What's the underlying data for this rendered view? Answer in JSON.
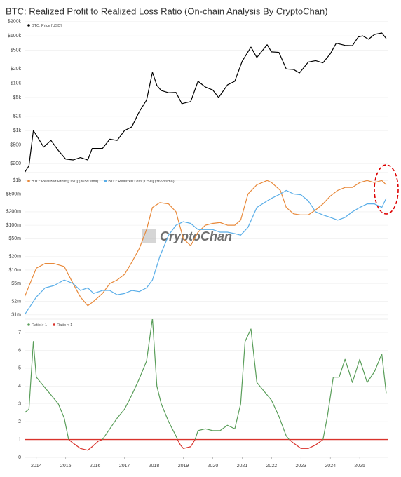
{
  "chart_data": [
    {
      "type": "line",
      "title": "BTC: Realized Profit to Realized Loss Ratio (On-chain Analysis By CryptoChan)",
      "log_y": true,
      "grid": true,
      "legend": "top-left",
      "xlim": [
        2013.6,
        2025.95
      ],
      "ylim": [
        130,
        220000
      ],
      "yticks": [
        {
          "value": 200000,
          "label": "$200k"
        },
        {
          "value": 100000,
          "label": "$100k"
        },
        {
          "value": 50000,
          "label": "$50k"
        },
        {
          "value": 20000,
          "label": "$20k"
        },
        {
          "value": 10000,
          "label": "$10k"
        },
        {
          "value": 5000,
          "label": "$5k"
        },
        {
          "value": 2000,
          "label": "$2k"
        },
        {
          "value": 1000,
          "label": "$1k"
        },
        {
          "value": 500,
          "label": "$500"
        },
        {
          "value": 200,
          "label": "$200"
        }
      ],
      "x": [
        2013.6,
        2013.75,
        2013.9,
        2014.0,
        2014.25,
        2014.5,
        2014.75,
        2015.0,
        2015.25,
        2015.5,
        2015.75,
        2015.9,
        2016.25,
        2016.5,
        2016.75,
        2017.0,
        2017.25,
        2017.5,
        2017.75,
        2017.95,
        2018.1,
        2018.25,
        2018.5,
        2018.75,
        2018.95,
        2019.25,
        2019.5,
        2019.75,
        2020.0,
        2020.2,
        2020.5,
        2020.75,
        2021.0,
        2021.3,
        2021.5,
        2021.85,
        2022.0,
        2022.25,
        2022.5,
        2022.75,
        2022.95,
        2023.25,
        2023.5,
        2023.75,
        2024.0,
        2024.2,
        2024.5,
        2024.75,
        2024.95,
        2025.1,
        2025.3,
        2025.5,
        2025.75,
        2025.9
      ],
      "series": [
        {
          "name": "BTC: Price [USD]",
          "color": "#000000",
          "values": [
            130,
            180,
            1000,
            800,
            450,
            620,
            380,
            250,
            240,
            270,
            240,
            420,
            420,
            660,
            620,
            1000,
            1200,
            2500,
            4400,
            17000,
            9000,
            7000,
            6300,
            6400,
            3700,
            4100,
            11000,
            8300,
            7200,
            5000,
            9200,
            11000,
            29000,
            58000,
            35000,
            65000,
            46000,
            45000,
            20000,
            19500,
            16500,
            28000,
            30000,
            27000,
            42000,
            70000,
            63000,
            62000,
            95000,
            100000,
            85000,
            107000,
            115000,
            88000
          ]
        }
      ]
    },
    {
      "type": "line",
      "log_y": true,
      "grid": true,
      "legend": "top-left",
      "watermark": "CryptoChan",
      "xlim": [
        2013.6,
        2025.95
      ],
      "ylim": [
        800000,
        1300000000
      ],
      "yticks": [
        {
          "value": 1000000000,
          "label": "$1b"
        },
        {
          "value": 500000000,
          "label": "$500m"
        },
        {
          "value": 200000000,
          "label": "$200m"
        },
        {
          "value": 100000000,
          "label": "$100m"
        },
        {
          "value": 50000000,
          "label": "$50m"
        },
        {
          "value": 20000000,
          "label": "$20m"
        },
        {
          "value": 10000000,
          "label": "$10m"
        },
        {
          "value": 5000000,
          "label": "$5m"
        },
        {
          "value": 2000000,
          "label": "$2m"
        },
        {
          "value": 1000000,
          "label": "$1m"
        }
      ],
      "x": [
        2013.6,
        2014.0,
        2014.3,
        2014.6,
        2014.95,
        2015.25,
        2015.5,
        2015.75,
        2015.95,
        2016.25,
        2016.5,
        2016.75,
        2017.0,
        2017.25,
        2017.5,
        2017.75,
        2017.95,
        2018.2,
        2018.5,
        2018.75,
        2019.0,
        2019.25,
        2019.5,
        2019.75,
        2020.0,
        2020.25,
        2020.5,
        2020.75,
        2020.95,
        2021.2,
        2021.5,
        2021.85,
        2022.0,
        2022.3,
        2022.5,
        2022.75,
        2023.0,
        2023.25,
        2023.5,
        2023.75,
        2024.0,
        2024.25,
        2024.5,
        2024.75,
        2025.0,
        2025.25,
        2025.5,
        2025.75,
        2025.9
      ],
      "series": [
        {
          "name": "BTC: Realized Profit [USD] (365d sma)",
          "color": "#e8893a",
          "values": [
            2500000,
            11000000,
            14000000,
            14000000,
            12000000,
            5000000,
            2500000,
            1600000,
            2000000,
            3000000,
            5000000,
            6000000,
            8000000,
            15000000,
            30000000,
            80000000,
            250000000,
            320000000,
            300000000,
            200000000,
            50000000,
            35000000,
            70000000,
            100000000,
            110000000,
            115000000,
            100000000,
            100000000,
            130000000,
            500000000,
            800000000,
            1000000000,
            900000000,
            600000000,
            250000000,
            180000000,
            170000000,
            170000000,
            220000000,
            300000000,
            450000000,
            600000000,
            700000000,
            700000000,
            900000000,
            1000000000,
            900000000,
            1000000000,
            800000000
          ]
        },
        {
          "name": "BTC: Realized Loss [USD] (365d sma)",
          "color": "#5aaee8",
          "values": [
            1000000,
            2500000,
            4000000,
            4500000,
            6000000,
            5000000,
            3500000,
            4000000,
            3000000,
            3500000,
            3500000,
            2800000,
            3000000,
            3500000,
            3300000,
            4000000,
            6000000,
            20000000,
            60000000,
            100000000,
            120000000,
            110000000,
            80000000,
            80000000,
            80000000,
            70000000,
            70000000,
            65000000,
            60000000,
            90000000,
            250000000,
            350000000,
            400000000,
            500000000,
            600000000,
            500000000,
            480000000,
            350000000,
            200000000,
            170000000,
            150000000,
            130000000,
            150000000,
            200000000,
            250000000,
            300000000,
            300000000,
            250000000,
            400000000
          ]
        }
      ]
    },
    {
      "type": "line",
      "log_y": false,
      "grid": true,
      "legend": "top-left",
      "xlim": [
        2013.6,
        2025.95
      ],
      "ylim": [
        0,
        7.75
      ],
      "yticks": [
        0,
        1,
        2,
        3,
        4,
        5,
        6,
        7
      ],
      "xticks": [
        2014,
        2015,
        2016,
        2017,
        2018,
        2019,
        2020,
        2021,
        2022,
        2023,
        2024,
        2025
      ],
      "hline": {
        "value": 1,
        "color": "#d9322b"
      },
      "x": [
        2013.6,
        2013.75,
        2013.9,
        2014.0,
        2014.25,
        2014.5,
        2014.75,
        2014.95,
        2015.1,
        2015.25,
        2015.5,
        2015.75,
        2015.9,
        2016.1,
        2016.25,
        2016.5,
        2016.75,
        2017.0,
        2017.25,
        2017.5,
        2017.75,
        2017.95,
        2018.1,
        2018.25,
        2018.5,
        2018.75,
        2018.8,
        2018.9,
        2019.0,
        2019.25,
        2019.4,
        2019.5,
        2019.75,
        2020.0,
        2020.25,
        2020.5,
        2020.75,
        2020.95,
        2021.1,
        2021.3,
        2021.5,
        2021.85,
        2022.0,
        2022.25,
        2022.5,
        2022.6,
        2022.75,
        2023.0,
        2023.25,
        2023.5,
        2023.75,
        2023.9,
        2024.1,
        2024.3,
        2024.5,
        2024.75,
        2025.0,
        2025.25,
        2025.5,
        2025.75,
        2025.9
      ],
      "series": [
        {
          "name": "Ratio > 1",
          "color": "#5a9e5a",
          "values": [
            2.5,
            2.7,
            6.5,
            4.5,
            4.0,
            3.5,
            3.0,
            2.2,
            1.0,
            null,
            null,
            null,
            null,
            null,
            1.0,
            1.6,
            2.2,
            2.7,
            3.5,
            4.4,
            5.4,
            7.8,
            4.0,
            3.0,
            2.0,
            1.2,
            1.0,
            null,
            null,
            null,
            1.0,
            1.5,
            1.6,
            1.5,
            1.5,
            1.8,
            1.6,
            3.0,
            6.5,
            7.2,
            4.2,
            3.5,
            3.2,
            2.3,
            1.2,
            1.0,
            null,
            null,
            null,
            null,
            1.0,
            2.3,
            4.5,
            4.5,
            5.5,
            4.2,
            5.5,
            4.2,
            4.8,
            5.8,
            3.6
          ]
        },
        {
          "name": "Ratio < 1",
          "color": "#d9322b",
          "values": [
            null,
            null,
            null,
            null,
            null,
            null,
            null,
            null,
            1.0,
            0.8,
            0.5,
            0.4,
            0.6,
            0.9,
            1.0,
            null,
            null,
            null,
            null,
            null,
            null,
            null,
            null,
            null,
            null,
            null,
            1.0,
            0.7,
            0.5,
            0.6,
            1.0,
            null,
            null,
            null,
            null,
            null,
            null,
            null,
            null,
            null,
            null,
            null,
            null,
            null,
            null,
            1.0,
            0.8,
            0.5,
            0.5,
            0.7,
            1.0,
            null,
            null,
            null,
            null,
            null,
            null,
            null,
            null,
            null,
            null
          ]
        }
      ]
    }
  ]
}
